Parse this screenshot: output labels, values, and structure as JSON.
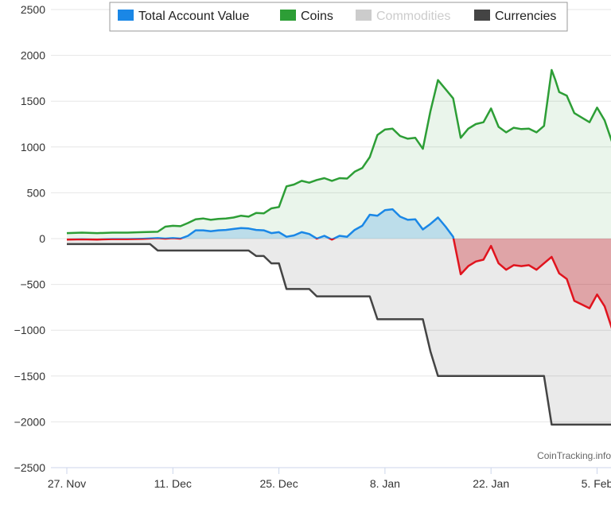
{
  "chart_data": {
    "type": "area",
    "title": "",
    "xlabel": "",
    "ylabel": "",
    "credit": "CoinTracking.info",
    "grid": true,
    "legend_position": "top",
    "ylim": [
      -2500,
      2500
    ],
    "yticks": [
      2500,
      2000,
      1500,
      1000,
      500,
      0,
      -500,
      -1000,
      -1500,
      -2000,
      -2500
    ],
    "xlim": [
      "2017-11-27",
      "2018-02-06"
    ],
    "x_ticks": [
      {
        "date": "2017-11-27",
        "label": "27. Nov"
      },
      {
        "date": "2017-12-11",
        "label": "11. Dec"
      },
      {
        "date": "2017-12-25",
        "label": "25. Dec"
      },
      {
        "date": "2018-01-08",
        "label": "8. Jan"
      },
      {
        "date": "2018-01-22",
        "label": "22. Jan"
      },
      {
        "date": "2018-02-05",
        "label": "5. Feb"
      }
    ],
    "series": [
      {
        "name": "Total Account Value",
        "color": "#1a87e6",
        "negative_color": "#e0141e",
        "visible": true,
        "points": [
          [
            "2017-11-27",
            -10
          ],
          [
            "2017-11-29",
            -8
          ],
          [
            "2017-12-01",
            -10
          ],
          [
            "2017-12-03",
            -5
          ],
          [
            "2017-12-05",
            -5
          ],
          [
            "2017-12-07",
            -2
          ],
          [
            "2017-12-09",
            5
          ],
          [
            "2017-12-10",
            0
          ],
          [
            "2017-12-11",
            5
          ],
          [
            "2017-12-12",
            0
          ],
          [
            "2017-12-13",
            30
          ],
          [
            "2017-12-14",
            90
          ],
          [
            "2017-12-15",
            90
          ],
          [
            "2017-12-16",
            80
          ],
          [
            "2017-12-17",
            90
          ],
          [
            "2017-12-18",
            95
          ],
          [
            "2017-12-19",
            105
          ],
          [
            "2017-12-20",
            115
          ],
          [
            "2017-12-21",
            110
          ],
          [
            "2017-12-22",
            95
          ],
          [
            "2017-12-23",
            90
          ],
          [
            "2017-12-24",
            60
          ],
          [
            "2017-12-25",
            70
          ],
          [
            "2017-12-26",
            20
          ],
          [
            "2017-12-27",
            35
          ],
          [
            "2017-12-28",
            70
          ],
          [
            "2017-12-29",
            50
          ],
          [
            "2017-12-30",
            0
          ],
          [
            "2017-12-31",
            30
          ],
          [
            "2018-01-01",
            -10
          ],
          [
            "2018-01-02",
            30
          ],
          [
            "2018-01-03",
            20
          ],
          [
            "2018-01-04",
            95
          ],
          [
            "2018-01-05",
            140
          ],
          [
            "2018-01-06",
            260
          ],
          [
            "2018-01-07",
            250
          ],
          [
            "2018-01-08",
            310
          ],
          [
            "2018-01-09",
            320
          ],
          [
            "2018-01-10",
            240
          ],
          [
            "2018-01-11",
            205
          ],
          [
            "2018-01-12",
            210
          ],
          [
            "2018-01-13",
            100
          ],
          [
            "2018-01-14",
            160
          ],
          [
            "2018-01-15",
            230
          ],
          [
            "2018-01-16",
            130
          ],
          [
            "2018-01-17",
            20
          ],
          [
            "2018-01-18",
            -390
          ],
          [
            "2018-01-19",
            -300
          ],
          [
            "2018-01-20",
            -250
          ],
          [
            "2018-01-21",
            -230
          ],
          [
            "2018-01-22",
            -80
          ],
          [
            "2018-01-23",
            -270
          ],
          [
            "2018-01-24",
            -340
          ],
          [
            "2018-01-25",
            -290
          ],
          [
            "2018-01-26",
            -300
          ],
          [
            "2018-01-27",
            -290
          ],
          [
            "2018-01-28",
            -340
          ],
          [
            "2018-01-29",
            -270
          ],
          [
            "2018-01-30",
            -200
          ],
          [
            "2018-01-31",
            -380
          ],
          [
            "2018-02-01",
            -440
          ],
          [
            "2018-02-02",
            -680
          ],
          [
            "2018-02-03",
            -720
          ],
          [
            "2018-02-04",
            -760
          ],
          [
            "2018-02-05",
            -610
          ],
          [
            "2018-02-06",
            -740
          ],
          [
            "2018-02-07",
            -990
          ],
          [
            "2018-02-07T12:00",
            -1010
          ]
        ]
      },
      {
        "name": "Coins",
        "color": "#2d9e36",
        "visible": true,
        "points": [
          [
            "2017-11-27",
            60
          ],
          [
            "2017-11-29",
            65
          ],
          [
            "2017-12-01",
            60
          ],
          [
            "2017-12-03",
            65
          ],
          [
            "2017-12-05",
            65
          ],
          [
            "2017-12-07",
            70
          ],
          [
            "2017-12-09",
            75
          ],
          [
            "2017-12-10",
            130
          ],
          [
            "2017-12-11",
            140
          ],
          [
            "2017-12-12",
            135
          ],
          [
            "2017-12-13",
            170
          ],
          [
            "2017-12-14",
            210
          ],
          [
            "2017-12-15",
            220
          ],
          [
            "2017-12-16",
            205
          ],
          [
            "2017-12-17",
            215
          ],
          [
            "2017-12-18",
            220
          ],
          [
            "2017-12-19",
            230
          ],
          [
            "2017-12-20",
            250
          ],
          [
            "2017-12-21",
            240
          ],
          [
            "2017-12-22",
            280
          ],
          [
            "2017-12-23",
            275
          ],
          [
            "2017-12-24",
            330
          ],
          [
            "2017-12-25",
            345
          ],
          [
            "2017-12-26",
            570
          ],
          [
            "2017-12-27",
            590
          ],
          [
            "2017-12-28",
            630
          ],
          [
            "2017-12-29",
            610
          ],
          [
            "2017-12-30",
            640
          ],
          [
            "2017-12-31",
            660
          ],
          [
            "2018-01-01",
            630
          ],
          [
            "2018-01-02",
            660
          ],
          [
            "2018-01-03",
            655
          ],
          [
            "2018-01-04",
            730
          ],
          [
            "2018-01-05",
            770
          ],
          [
            "2018-01-06",
            890
          ],
          [
            "2018-01-07",
            1130
          ],
          [
            "2018-01-08",
            1190
          ],
          [
            "2018-01-09",
            1200
          ],
          [
            "2018-01-10",
            1120
          ],
          [
            "2018-01-11",
            1090
          ],
          [
            "2018-01-12",
            1100
          ],
          [
            "2018-01-13",
            980
          ],
          [
            "2018-01-14",
            1390
          ],
          [
            "2018-01-15",
            1730
          ],
          [
            "2018-01-16",
            1630
          ],
          [
            "2018-01-17",
            1530
          ],
          [
            "2018-01-18",
            1100
          ],
          [
            "2018-01-19",
            1200
          ],
          [
            "2018-01-20",
            1250
          ],
          [
            "2018-01-21",
            1270
          ],
          [
            "2018-01-22",
            1420
          ],
          [
            "2018-01-23",
            1220
          ],
          [
            "2018-01-24",
            1160
          ],
          [
            "2018-01-25",
            1210
          ],
          [
            "2018-01-26",
            1195
          ],
          [
            "2018-01-27",
            1200
          ],
          [
            "2018-01-28",
            1160
          ],
          [
            "2018-01-29",
            1230
          ],
          [
            "2018-01-30",
            1840
          ],
          [
            "2018-01-30T12:00",
            1730
          ],
          [
            "2018-01-31",
            1600
          ],
          [
            "2018-02-01",
            1560
          ],
          [
            "2018-02-02",
            1370
          ],
          [
            "2018-02-03",
            1320
          ],
          [
            "2018-02-04",
            1270
          ],
          [
            "2018-02-05",
            1430
          ],
          [
            "2018-02-06",
            1290
          ],
          [
            "2018-02-07",
            1050
          ],
          [
            "2018-02-07T12:00",
            1020
          ]
        ]
      },
      {
        "name": "Commodities",
        "color": "#cccccc",
        "visible": false,
        "points": []
      },
      {
        "name": "Currencies",
        "color": "#444444",
        "visible": true,
        "step": true,
        "points": [
          [
            "2017-11-27",
            -60
          ],
          [
            "2017-12-07",
            -60
          ],
          [
            "2017-12-08",
            -60
          ],
          [
            "2017-12-09",
            -130
          ],
          [
            "2017-12-20",
            -130
          ],
          [
            "2017-12-21",
            -130
          ],
          [
            "2017-12-22",
            -190
          ],
          [
            "2017-12-23",
            -190
          ],
          [
            "2017-12-24",
            -270
          ],
          [
            "2017-12-25",
            -270
          ],
          [
            "2017-12-26",
            -550
          ],
          [
            "2017-12-28",
            -550
          ],
          [
            "2017-12-29",
            -550
          ],
          [
            "2017-12-30",
            -630
          ],
          [
            "2018-01-06",
            -630
          ],
          [
            "2018-01-07",
            -880
          ],
          [
            "2018-01-13",
            -880
          ],
          [
            "2018-01-14",
            -1230
          ],
          [
            "2018-01-15",
            -1500
          ],
          [
            "2018-01-28",
            -1500
          ],
          [
            "2018-01-29",
            -1500
          ],
          [
            "2018-01-30",
            -2030
          ],
          [
            "2018-02-07T12:00",
            -2030
          ]
        ]
      }
    ]
  }
}
